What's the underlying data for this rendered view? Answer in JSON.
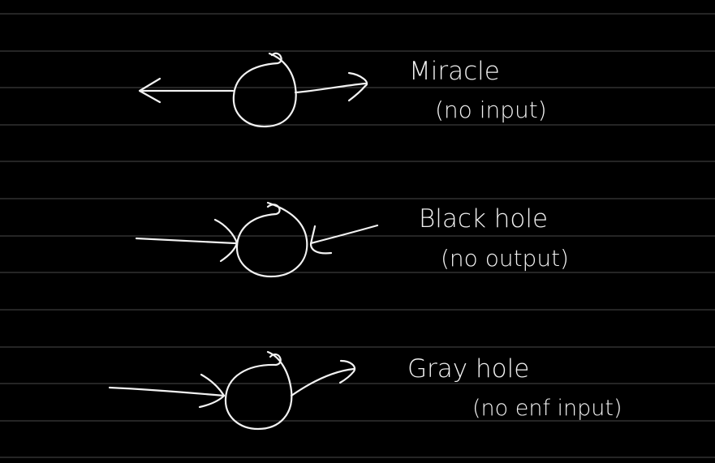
{
  "colors": {
    "background": "#000000",
    "rule_line": "#4a4a4a",
    "ink": "#f2f2f2"
  },
  "diagrams": [
    {
      "title": "Miracle",
      "subtitle": "(no input)"
    },
    {
      "title": "Black hole",
      "subtitle": "(no output)"
    },
    {
      "title": "Gray hole",
      "subtitle": "(no enf input)"
    }
  ]
}
